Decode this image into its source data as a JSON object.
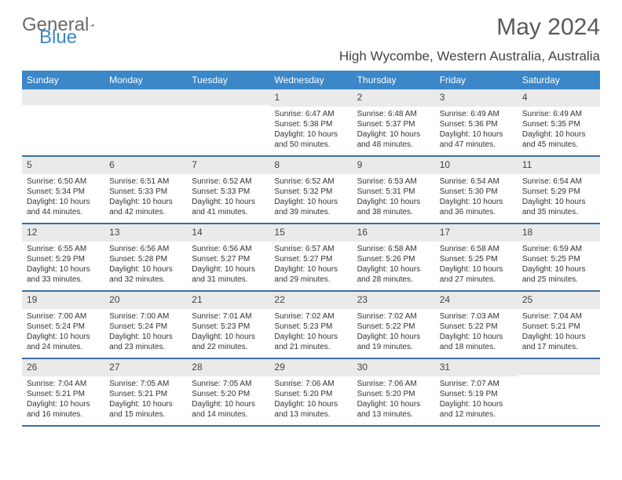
{
  "logo": {
    "text1": "General",
    "text2": "Blue"
  },
  "title": "May 2024",
  "subtitle": "High Wycombe, Western Australia, Australia",
  "header_bg": "#3b87c8",
  "week_border": "#3b6ea0",
  "daynum_bg": "#eaeaea",
  "dayNames": [
    "Sunday",
    "Monday",
    "Tuesday",
    "Wednesday",
    "Thursday",
    "Friday",
    "Saturday"
  ],
  "weeks": [
    [
      null,
      null,
      null,
      {
        "n": "1",
        "sr": "Sunrise: 6:47 AM",
        "ss": "Sunset: 5:38 PM",
        "dl": "Daylight: 10 hours and 50 minutes."
      },
      {
        "n": "2",
        "sr": "Sunrise: 6:48 AM",
        "ss": "Sunset: 5:37 PM",
        "dl": "Daylight: 10 hours and 48 minutes."
      },
      {
        "n": "3",
        "sr": "Sunrise: 6:49 AM",
        "ss": "Sunset: 5:36 PM",
        "dl": "Daylight: 10 hours and 47 minutes."
      },
      {
        "n": "4",
        "sr": "Sunrise: 6:49 AM",
        "ss": "Sunset: 5:35 PM",
        "dl": "Daylight: 10 hours and 45 minutes."
      }
    ],
    [
      {
        "n": "5",
        "sr": "Sunrise: 6:50 AM",
        "ss": "Sunset: 5:34 PM",
        "dl": "Daylight: 10 hours and 44 minutes."
      },
      {
        "n": "6",
        "sr": "Sunrise: 6:51 AM",
        "ss": "Sunset: 5:33 PM",
        "dl": "Daylight: 10 hours and 42 minutes."
      },
      {
        "n": "7",
        "sr": "Sunrise: 6:52 AM",
        "ss": "Sunset: 5:33 PM",
        "dl": "Daylight: 10 hours and 41 minutes."
      },
      {
        "n": "8",
        "sr": "Sunrise: 6:52 AM",
        "ss": "Sunset: 5:32 PM",
        "dl": "Daylight: 10 hours and 39 minutes."
      },
      {
        "n": "9",
        "sr": "Sunrise: 6:53 AM",
        "ss": "Sunset: 5:31 PM",
        "dl": "Daylight: 10 hours and 38 minutes."
      },
      {
        "n": "10",
        "sr": "Sunrise: 6:54 AM",
        "ss": "Sunset: 5:30 PM",
        "dl": "Daylight: 10 hours and 36 minutes."
      },
      {
        "n": "11",
        "sr": "Sunrise: 6:54 AM",
        "ss": "Sunset: 5:29 PM",
        "dl": "Daylight: 10 hours and 35 minutes."
      }
    ],
    [
      {
        "n": "12",
        "sr": "Sunrise: 6:55 AM",
        "ss": "Sunset: 5:29 PM",
        "dl": "Daylight: 10 hours and 33 minutes."
      },
      {
        "n": "13",
        "sr": "Sunrise: 6:56 AM",
        "ss": "Sunset: 5:28 PM",
        "dl": "Daylight: 10 hours and 32 minutes."
      },
      {
        "n": "14",
        "sr": "Sunrise: 6:56 AM",
        "ss": "Sunset: 5:27 PM",
        "dl": "Daylight: 10 hours and 31 minutes."
      },
      {
        "n": "15",
        "sr": "Sunrise: 6:57 AM",
        "ss": "Sunset: 5:27 PM",
        "dl": "Daylight: 10 hours and 29 minutes."
      },
      {
        "n": "16",
        "sr": "Sunrise: 6:58 AM",
        "ss": "Sunset: 5:26 PM",
        "dl": "Daylight: 10 hours and 28 minutes."
      },
      {
        "n": "17",
        "sr": "Sunrise: 6:58 AM",
        "ss": "Sunset: 5:25 PM",
        "dl": "Daylight: 10 hours and 27 minutes."
      },
      {
        "n": "18",
        "sr": "Sunrise: 6:59 AM",
        "ss": "Sunset: 5:25 PM",
        "dl": "Daylight: 10 hours and 25 minutes."
      }
    ],
    [
      {
        "n": "19",
        "sr": "Sunrise: 7:00 AM",
        "ss": "Sunset: 5:24 PM",
        "dl": "Daylight: 10 hours and 24 minutes."
      },
      {
        "n": "20",
        "sr": "Sunrise: 7:00 AM",
        "ss": "Sunset: 5:24 PM",
        "dl": "Daylight: 10 hours and 23 minutes."
      },
      {
        "n": "21",
        "sr": "Sunrise: 7:01 AM",
        "ss": "Sunset: 5:23 PM",
        "dl": "Daylight: 10 hours and 22 minutes."
      },
      {
        "n": "22",
        "sr": "Sunrise: 7:02 AM",
        "ss": "Sunset: 5:23 PM",
        "dl": "Daylight: 10 hours and 21 minutes."
      },
      {
        "n": "23",
        "sr": "Sunrise: 7:02 AM",
        "ss": "Sunset: 5:22 PM",
        "dl": "Daylight: 10 hours and 19 minutes."
      },
      {
        "n": "24",
        "sr": "Sunrise: 7:03 AM",
        "ss": "Sunset: 5:22 PM",
        "dl": "Daylight: 10 hours and 18 minutes."
      },
      {
        "n": "25",
        "sr": "Sunrise: 7:04 AM",
        "ss": "Sunset: 5:21 PM",
        "dl": "Daylight: 10 hours and 17 minutes."
      }
    ],
    [
      {
        "n": "26",
        "sr": "Sunrise: 7:04 AM",
        "ss": "Sunset: 5:21 PM",
        "dl": "Daylight: 10 hours and 16 minutes."
      },
      {
        "n": "27",
        "sr": "Sunrise: 7:05 AM",
        "ss": "Sunset: 5:21 PM",
        "dl": "Daylight: 10 hours and 15 minutes."
      },
      {
        "n": "28",
        "sr": "Sunrise: 7:05 AM",
        "ss": "Sunset: 5:20 PM",
        "dl": "Daylight: 10 hours and 14 minutes."
      },
      {
        "n": "29",
        "sr": "Sunrise: 7:06 AM",
        "ss": "Sunset: 5:20 PM",
        "dl": "Daylight: 10 hours and 13 minutes."
      },
      {
        "n": "30",
        "sr": "Sunrise: 7:06 AM",
        "ss": "Sunset: 5:20 PM",
        "dl": "Daylight: 10 hours and 13 minutes."
      },
      {
        "n": "31",
        "sr": "Sunrise: 7:07 AM",
        "ss": "Sunset: 5:19 PM",
        "dl": "Daylight: 10 hours and 12 minutes."
      },
      null
    ]
  ]
}
